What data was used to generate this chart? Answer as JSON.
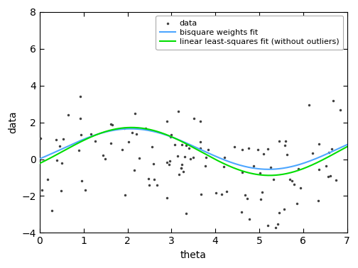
{
  "title": "",
  "xlabel": "theta",
  "ylabel": "data",
  "xlim": [
    0,
    7
  ],
  "ylim": [
    -4,
    8
  ],
  "xticks": [
    0,
    1,
    2,
    3,
    4,
    5,
    6,
    7
  ],
  "yticks": [
    -4,
    -2,
    0,
    2,
    4,
    6,
    8
  ],
  "scatter_color": "#404040",
  "scatter_marker": ".",
  "scatter_size": 25,
  "bisquare_color": "#4da6ff",
  "bisquare_lw": 1.5,
  "linear_color": "#00dd00",
  "linear_lw": 1.5,
  "legend_labels": [
    "data",
    "bisquare weights fit",
    "linear least-squares fit (without outliers)"
  ],
  "bisquare_params": [
    1.1,
    -0.5,
    0.55
  ],
  "linear_params": [
    1.3,
    -0.52,
    0.42
  ],
  "fig_width": 5.04,
  "fig_height": 3.78,
  "dpi": 100
}
